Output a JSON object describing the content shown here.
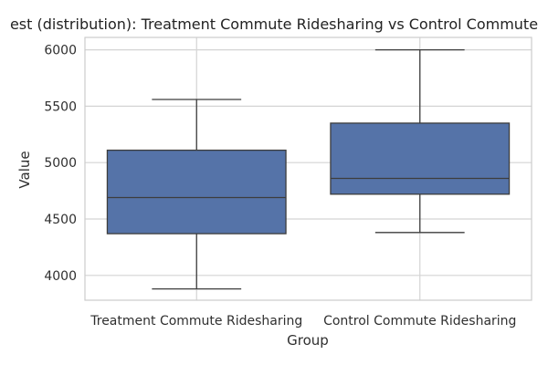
{
  "chart_data": {
    "type": "box",
    "title": "est (distribution): Treatment Commute Ridesharing vs Control Commute",
    "xlabel": "Group",
    "ylabel": "Value",
    "ylim": [
      3780,
      6110
    ],
    "yticks": [
      4000,
      4500,
      5000,
      5500,
      6000
    ],
    "grid": true,
    "categories": [
      "Treatment Commute Ridesharing",
      "Control Commute Ridesharing"
    ],
    "boxes": [
      {
        "category": "Treatment Commute Ridesharing",
        "whisker_low": 3880,
        "q1": 4370,
        "median": 4690,
        "q3": 5110,
        "whisker_high": 5560
      },
      {
        "category": "Control Commute Ridesharing",
        "whisker_low": 4380,
        "q1": 4720,
        "median": 4860,
        "q3": 5350,
        "whisker_high": 6000
      }
    ],
    "colors": {
      "box_fill": "#5573a8",
      "box_edge": "#3d3d3d",
      "grid": "#d4d4d4",
      "frame": "#cccccc"
    }
  }
}
